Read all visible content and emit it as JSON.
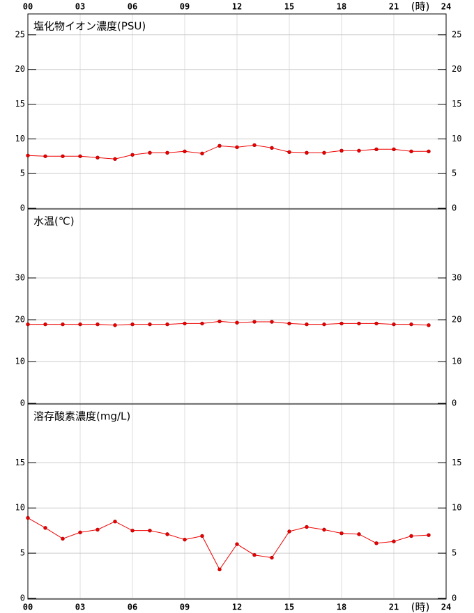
{
  "chart_data": [
    {
      "type": "line",
      "title": "塩化物イオン濃度(PSU)",
      "x_label": "(時)",
      "x": [
        0,
        1,
        2,
        3,
        4,
        5,
        6,
        7,
        8,
        9,
        10,
        11,
        12,
        13,
        14,
        15,
        16,
        17,
        18,
        19,
        20,
        21,
        22,
        23
      ],
      "xlim": [
        0,
        24
      ],
      "xticks": [
        {
          "value": 0,
          "label": "00"
        },
        {
          "value": 3,
          "label": "03"
        },
        {
          "value": 6,
          "label": "06"
        },
        {
          "value": 9,
          "label": "09"
        },
        12,
        15,
        18,
        21,
        24
      ],
      "ylim": [
        0,
        28
      ],
      "yticks": [
        0,
        5,
        10,
        15,
        20,
        25
      ],
      "grid": true,
      "series": [
        {
          "color": "#ee0000",
          "values": [
            7.6,
            7.5,
            7.5,
            7.5,
            7.3,
            7.1,
            7.7,
            8.0,
            8.0,
            8.2,
            7.9,
            9.0,
            8.8,
            9.1,
            8.7,
            8.1,
            8.0,
            8.0,
            8.3,
            8.3,
            8.5,
            8.5,
            8.2,
            8.2
          ]
        }
      ]
    },
    {
      "type": "line",
      "title": "水温(℃)",
      "x": [
        0,
        1,
        2,
        3,
        4,
        5,
        6,
        7,
        8,
        9,
        10,
        11,
        12,
        13,
        14,
        15,
        16,
        17,
        18,
        19,
        20,
        21,
        22,
        23
      ],
      "xlim": [
        0,
        24
      ],
      "ylim": [
        0,
        46.5
      ],
      "yticks": [
        0,
        10,
        20,
        30
      ],
      "grid": true,
      "series": [
        {
          "color": "#ee0000",
          "values": [
            18.9,
            18.9,
            18.9,
            18.9,
            18.9,
            18.7,
            18.9,
            18.9,
            18.9,
            19.1,
            19.1,
            19.6,
            19.3,
            19.5,
            19.5,
            19.1,
            18.9,
            18.9,
            19.1,
            19.1,
            19.1,
            18.9,
            18.9,
            18.7
          ]
        }
      ]
    },
    {
      "type": "line",
      "title": "溶存酸素濃度(mg/L)",
      "x_label": "(時)",
      "x": [
        0,
        1,
        2,
        3,
        4,
        5,
        6,
        7,
        8,
        9,
        10,
        11,
        12,
        13,
        14,
        15,
        16,
        17,
        18,
        19,
        20,
        21,
        22,
        23
      ],
      "xlim": [
        0,
        24
      ],
      "xticks": [
        {
          "value": 0,
          "label": "00"
        },
        {
          "value": 3,
          "label": "03"
        },
        {
          "value": 6,
          "label": "06"
        },
        {
          "value": 9,
          "label": "09"
        },
        12,
        15,
        18,
        21,
        24
      ],
      "ylim": [
        0,
        21.5
      ],
      "yticks": [
        0,
        5,
        10,
        15
      ],
      "grid": true,
      "series": [
        {
          "color": "#ee0000",
          "values": [
            8.9,
            7.8,
            6.6,
            7.3,
            7.6,
            8.5,
            7.5,
            7.5,
            7.1,
            6.5,
            6.9,
            3.2,
            6.0,
            4.8,
            4.5,
            7.4,
            7.9,
            7.6,
            7.2,
            7.1,
            6.1,
            6.3,
            6.9,
            7.0
          ]
        }
      ]
    }
  ]
}
